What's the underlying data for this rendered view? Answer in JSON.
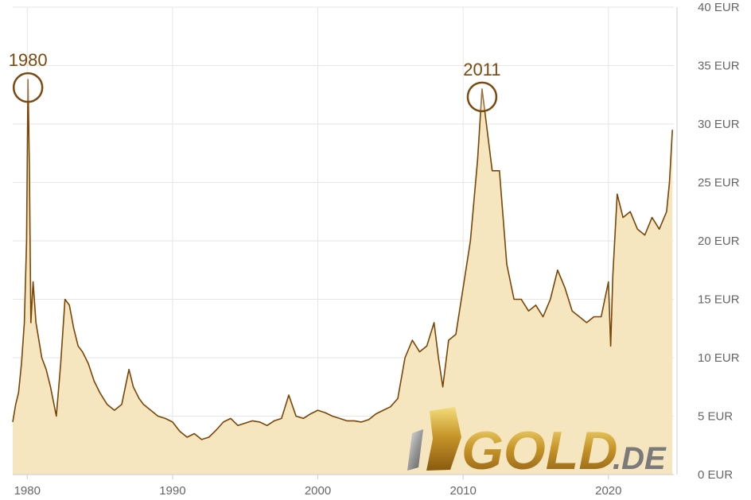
{
  "chart_data": {
    "type": "area",
    "title": "",
    "xlabel": "",
    "ylabel": "",
    "unit": "EUR",
    "xlim": [
      1979.0,
      2024.5
    ],
    "ylim": [
      0,
      40
    ],
    "grid": true,
    "x_ticks": [
      {
        "value": 1980,
        "label": "1980"
      },
      {
        "value": 1990,
        "label": "1990"
      },
      {
        "value": 2000,
        "label": "2000"
      },
      {
        "value": 2010,
        "label": "2010"
      },
      {
        "value": 2020,
        "label": "2020"
      }
    ],
    "y_ticks": [
      {
        "value": 0,
        "label": "0 EUR"
      },
      {
        "value": 5,
        "label": "5 EUR"
      },
      {
        "value": 10,
        "label": "10 EUR"
      },
      {
        "value": 15,
        "label": "15 EUR"
      },
      {
        "value": 20,
        "label": "20 EUR"
      },
      {
        "value": 25,
        "label": "25 EUR"
      },
      {
        "value": 30,
        "label": "30 EUR"
      },
      {
        "value": 35,
        "label": "35 EUR"
      },
      {
        "value": 40,
        "label": "40 EUR"
      }
    ],
    "annotations": [
      {
        "label": "1980",
        "x": 1980.05,
        "y": 33.8
      },
      {
        "label": "2011",
        "x": 2011.3,
        "y": 33.0
      }
    ],
    "series": [
      {
        "x": [
          1979.0,
          1979.2,
          1979.4,
          1979.6,
          1979.8,
          1979.95,
          1980.05,
          1980.15,
          1980.25,
          1980.4,
          1980.6,
          1980.8,
          1981.0,
          1981.3,
          1981.6,
          1982.0,
          1982.3,
          1982.6,
          1982.9,
          1983.2,
          1983.5,
          1983.8,
          1984.2,
          1984.6,
          1985.0,
          1985.5,
          1986.0,
          1986.5,
          1987.0,
          1987.3,
          1987.7,
          1988.0,
          1988.5,
          1989.0,
          1989.5,
          1990.0,
          1990.5,
          1991.0,
          1991.5,
          1992.0,
          1992.5,
          1993.0,
          1993.5,
          1994.0,
          1994.5,
          1995.0,
          1995.5,
          1996.0,
          1996.5,
          1997.0,
          1997.5,
          1998.0,
          1998.5,
          1999.0,
          1999.5,
          2000.0,
          2000.5,
          2001.0,
          2001.5,
          2002.0,
          2002.5,
          2003.0,
          2003.5,
          2004.0,
          2004.5,
          2005.0,
          2005.5,
          2006.0,
          2006.5,
          2007.0,
          2007.5,
          2008.0,
          2008.3,
          2008.6,
          2009.0,
          2009.5,
          2010.0,
          2010.5,
          2011.0,
          2011.3,
          2011.6,
          2012.0,
          2012.5,
          2013.0,
          2013.5,
          2014.0,
          2014.5,
          2015.0,
          2015.5,
          2016.0,
          2016.5,
          2017.0,
          2017.5,
          2018.0,
          2018.5,
          2019.0,
          2019.5,
          2020.0,
          2020.15,
          2020.3,
          2020.6,
          2021.0,
          2021.5,
          2022.0,
          2022.5,
          2023.0,
          2023.5,
          2024.0,
          2024.2,
          2024.4
        ],
        "values": [
          4.5,
          6.0,
          7.0,
          9.5,
          13.0,
          20.0,
          33.8,
          26.0,
          13.0,
          16.5,
          13.0,
          11.5,
          10.0,
          9.0,
          7.5,
          5.0,
          9.5,
          15.0,
          14.5,
          12.5,
          11.0,
          10.5,
          9.5,
          8.0,
          7.0,
          6.0,
          5.5,
          6.0,
          9.0,
          7.5,
          6.5,
          6.0,
          5.5,
          5.0,
          4.8,
          4.5,
          3.7,
          3.2,
          3.5,
          3.0,
          3.2,
          3.8,
          4.5,
          4.8,
          4.2,
          4.4,
          4.6,
          4.5,
          4.2,
          4.6,
          4.8,
          6.8,
          5.0,
          4.8,
          5.2,
          5.5,
          5.3,
          5.0,
          4.8,
          4.6,
          4.6,
          4.5,
          4.7,
          5.2,
          5.5,
          5.8,
          6.5,
          10.0,
          11.5,
          10.5,
          11.0,
          13.0,
          10.0,
          7.5,
          11.5,
          12.0,
          16.0,
          20.0,
          27.0,
          33.0,
          30.0,
          26.0,
          26.0,
          18.0,
          15.0,
          15.0,
          14.0,
          14.5,
          13.5,
          15.0,
          17.5,
          16.0,
          14.0,
          13.5,
          13.0,
          13.5,
          13.5,
          16.5,
          11.0,
          17.0,
          24.0,
          22.0,
          22.5,
          21.0,
          20.5,
          22.0,
          21.0,
          22.5,
          25.0,
          29.5
        ]
      }
    ]
  },
  "watermark": {
    "text_main": "GOLD",
    "text_suffix": ".DE"
  },
  "colors": {
    "line": "#7a4505",
    "fill": "#f5e6c0",
    "grid": "#e6e6e6",
    "axis": "#cccccc",
    "annotation": "#7a4a10"
  }
}
